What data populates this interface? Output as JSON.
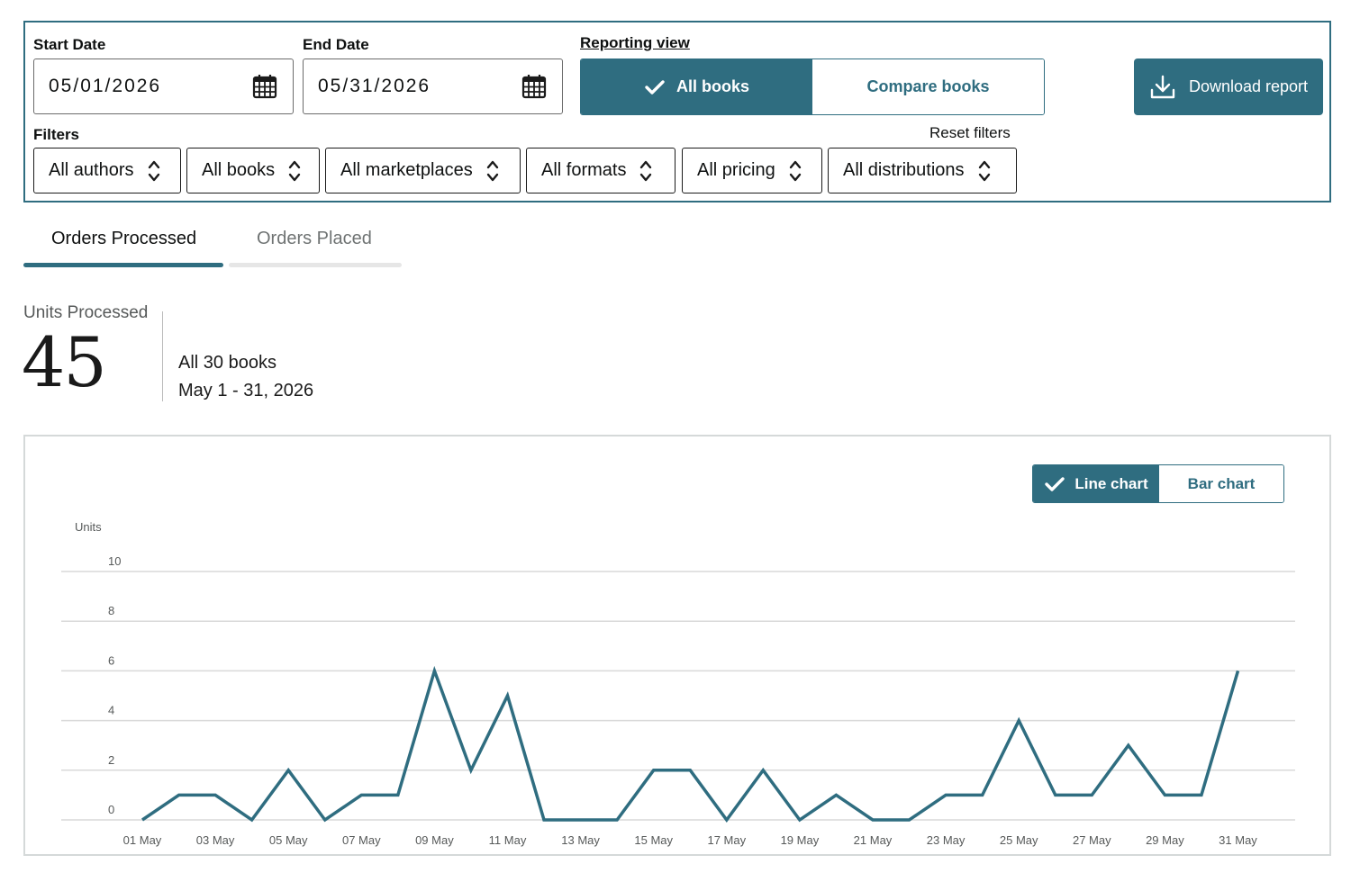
{
  "filters_panel": {
    "start_date": {
      "label": "Start Date",
      "value": "05/01/2026"
    },
    "end_date": {
      "label": "End Date",
      "value": "05/31/2026"
    },
    "reporting_view": {
      "label": "Reporting view",
      "options": [
        "All books",
        "Compare books"
      ],
      "selected": "All books"
    },
    "download_label": "Download report",
    "filters_label": "Filters",
    "reset_label": "Reset filters",
    "selects": [
      "All authors",
      "All books",
      "All marketplaces",
      "All formats",
      "All pricing",
      "All distributions"
    ]
  },
  "tabs": [
    {
      "label": "Orders Processed",
      "active": true
    },
    {
      "label": "Orders Placed",
      "active": false
    }
  ],
  "summary": {
    "label": "Units Processed",
    "value": "45",
    "scope": "All 30 books",
    "range": "May 1 - 31, 2026"
  },
  "chart_toggle": {
    "options": [
      "Line chart",
      "Bar chart"
    ],
    "selected": "Line chart"
  },
  "colors": {
    "accent": "#2f6d80",
    "grid": "#d9d9d9",
    "axis_text": "#565959"
  },
  "chart_data": {
    "type": "line",
    "ylabel": "Units",
    "ylim": [
      0,
      10
    ],
    "yticks": [
      "0",
      "2",
      "4",
      "6",
      "8",
      "10"
    ],
    "x_tick_labels": [
      "01 May",
      "03 May",
      "05 May",
      "07 May",
      "09 May",
      "11 May",
      "13 May",
      "15 May",
      "17 May",
      "19 May",
      "21 May",
      "23 May",
      "25 May",
      "27 May",
      "29 May",
      "31 May"
    ],
    "categories": [
      "01 May",
      "02 May",
      "03 May",
      "04 May",
      "05 May",
      "06 May",
      "07 May",
      "08 May",
      "09 May",
      "10 May",
      "11 May",
      "12 May",
      "13 May",
      "14 May",
      "15 May",
      "16 May",
      "17 May",
      "18 May",
      "19 May",
      "20 May",
      "21 May",
      "22 May",
      "23 May",
      "24 May",
      "25 May",
      "26 May",
      "27 May",
      "28 May",
      "29 May",
      "30 May",
      "31 May"
    ],
    "series": [
      {
        "values": [
          0,
          1,
          1,
          0,
          2,
          0,
          1,
          1,
          6,
          2,
          5,
          0,
          0,
          0,
          2,
          2,
          0,
          2,
          0,
          1,
          0,
          0,
          1,
          1,
          4,
          1,
          1,
          3,
          1,
          1,
          6
        ]
      }
    ],
    "grid": true,
    "legend": "none"
  }
}
